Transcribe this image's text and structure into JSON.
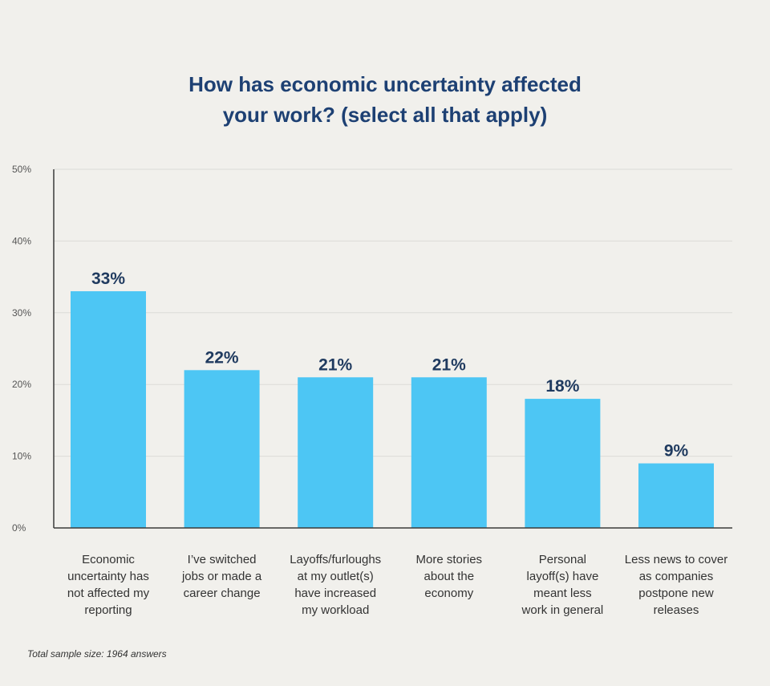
{
  "chart_data": {
    "type": "bar",
    "title_lines": [
      "How has economic uncertainty affected",
      "your work? (select all that apply)"
    ],
    "categories": [
      [
        "Economic",
        "uncertainty has",
        "not affected my",
        "reporting"
      ],
      [
        "I’ve switched",
        "jobs or made a",
        "career change"
      ],
      [
        "Layoffs/furloughs",
        "at my outlet(s)",
        "have increased",
        "my workload"
      ],
      [
        "More stories",
        "about the",
        "economy"
      ],
      [
        "Personal",
        "layoff(s) have",
        "meant less",
        "work in general"
      ],
      [
        "Less news to cover",
        "as companies",
        "postpone new",
        "releases"
      ]
    ],
    "values": [
      33,
      22,
      21,
      21,
      18,
      9
    ],
    "value_labels": [
      "33%",
      "22%",
      "21%",
      "21%",
      "18%",
      "9%"
    ],
    "y_ticks": [
      "0%",
      "10%",
      "20%",
      "30%",
      "40%",
      "50%"
    ],
    "ylim": [
      0,
      50
    ],
    "grid": true,
    "bar_color": "#4dc6f4",
    "value_label_color": "#1f3a5f",
    "footnote": "Total sample size: 1964 answers"
  }
}
